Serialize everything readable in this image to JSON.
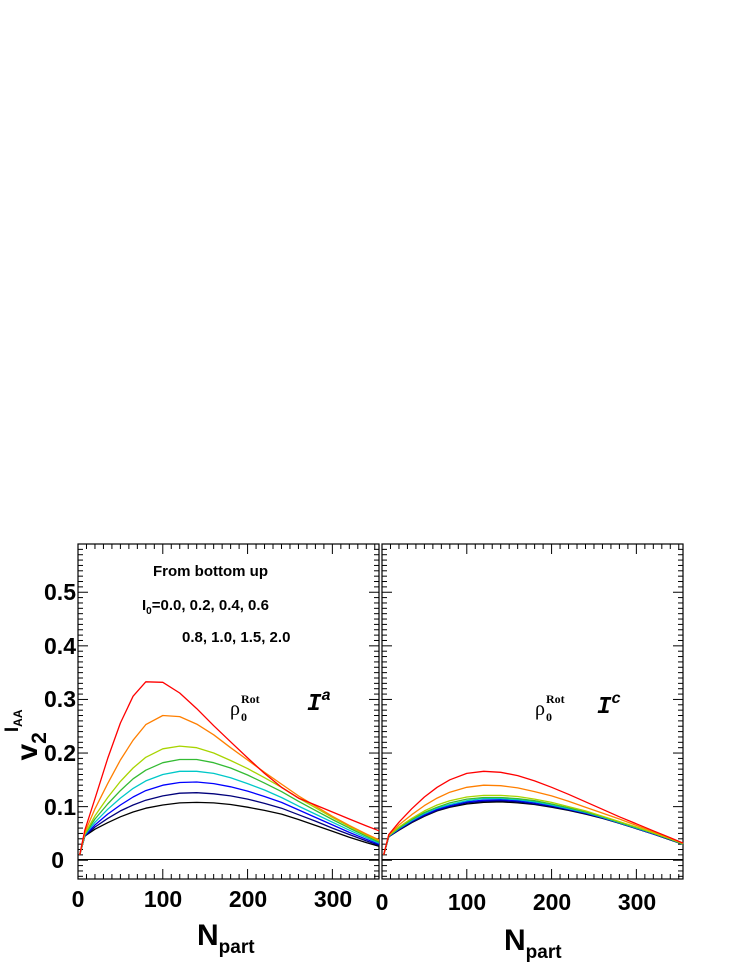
{
  "chart_data": [
    {
      "type": "line",
      "panel": "left",
      "panel_label": {
        "main": "I",
        "sup": "a"
      },
      "rho_label": {
        "main": "ρ",
        "sub": "0",
        "sup": "Rot"
      },
      "xlabel": {
        "main": "N",
        "sub": "part"
      },
      "ylabel": {
        "main": "v",
        "sub": "2",
        "sup_main": "I",
        "sup_sub": "AA"
      },
      "xlim": [
        0,
        355
      ],
      "ylim": [
        -0.035,
        0.59
      ],
      "xticks": [
        "0",
        "100",
        "200",
        "300"
      ],
      "yticks": [
        "0",
        "0.1",
        "0.2",
        "0.3",
        "0.4",
        "0.5"
      ],
      "annotations": {
        "line1": "From bottom up",
        "line2_main": "I",
        "line2_sub": "0",
        "line2_rest": "=0.0, 0.2, 0.4, 0.6",
        "line3": "0.8, 1.0, 1.5, 2.0"
      },
      "x": [
        2,
        8,
        20,
        35,
        50,
        65,
        80,
        100,
        120,
        140,
        160,
        180,
        200,
        220,
        240,
        260,
        280,
        300,
        320,
        340,
        355
      ],
      "series": [
        {
          "I0": "0.0",
          "color": "#000000",
          "values": [
            0.01,
            0.045,
            0.058,
            0.07,
            0.081,
            0.09,
            0.097,
            0.103,
            0.107,
            0.108,
            0.107,
            0.104,
            0.099,
            0.093,
            0.086,
            0.076,
            0.065,
            0.054,
            0.043,
            0.033,
            0.026
          ]
        },
        {
          "I0": "0.2",
          "color": "#00007a",
          "values": [
            0.01,
            0.045,
            0.062,
            0.078,
            0.092,
            0.103,
            0.112,
            0.12,
            0.125,
            0.126,
            0.124,
            0.12,
            0.114,
            0.106,
            0.097,
            0.085,
            0.073,
            0.06,
            0.048,
            0.036,
            0.028
          ]
        },
        {
          "I0": "0.4",
          "color": "#0000ff",
          "values": [
            0.01,
            0.046,
            0.066,
            0.086,
            0.103,
            0.118,
            0.13,
            0.14,
            0.145,
            0.146,
            0.143,
            0.137,
            0.129,
            0.119,
            0.108,
            0.094,
            0.08,
            0.066,
            0.052,
            0.039,
            0.03
          ]
        },
        {
          "I0": "0.6",
          "color": "#00c8c8",
          "values": [
            0.01,
            0.047,
            0.071,
            0.095,
            0.116,
            0.134,
            0.148,
            0.16,
            0.166,
            0.166,
            0.162,
            0.154,
            0.143,
            0.131,
            0.117,
            0.101,
            0.086,
            0.071,
            0.056,
            0.042,
            0.032
          ]
        },
        {
          "I0": "0.8",
          "color": "#33bb33",
          "values": [
            0.01,
            0.048,
            0.077,
            0.105,
            0.13,
            0.152,
            0.168,
            0.182,
            0.188,
            0.188,
            0.182,
            0.172,
            0.159,
            0.144,
            0.128,
            0.11,
            0.093,
            0.076,
            0.06,
            0.045,
            0.034
          ]
        },
        {
          "I0": "1.0",
          "color": "#a8d400",
          "values": [
            0.01,
            0.049,
            0.083,
            0.117,
            0.147,
            0.172,
            0.192,
            0.208,
            0.213,
            0.21,
            0.2,
            0.186,
            0.171,
            0.154,
            0.136,
            0.116,
            0.098,
            0.08,
            0.063,
            0.047,
            0.036
          ]
        },
        {
          "I0": "1.5",
          "color": "#ff7f00",
          "values": [
            0.01,
            0.052,
            0.096,
            0.143,
            0.187,
            0.224,
            0.253,
            0.27,
            0.268,
            0.254,
            0.234,
            0.21,
            0.187,
            0.164,
            0.142,
            0.12,
            0.101,
            0.082,
            0.065,
            0.049,
            0.038
          ]
        },
        {
          "I0": "2.0",
          "color": "#ff0000",
          "values": [
            0.01,
            0.056,
            0.115,
            0.19,
            0.256,
            0.306,
            0.333,
            0.332,
            0.312,
            0.283,
            0.251,
            0.221,
            0.191,
            0.162,
            0.136,
            0.116,
            0.103,
            0.09,
            0.077,
            0.064,
            0.055
          ]
        }
      ]
    },
    {
      "type": "line",
      "panel": "right",
      "panel_label": {
        "main": "I",
        "sup": "c"
      },
      "rho_label": {
        "main": "ρ",
        "sub": "0",
        "sup": "Rot"
      },
      "xlabel": {
        "main": "N",
        "sub": "part"
      },
      "xlim": [
        0,
        355
      ],
      "ylim": [
        -0.035,
        0.59
      ],
      "xticks": [
        "0",
        "100",
        "200",
        "300"
      ],
      "x": [
        2,
        8,
        20,
        35,
        50,
        65,
        80,
        100,
        120,
        140,
        160,
        180,
        200,
        220,
        240,
        260,
        280,
        300,
        320,
        340,
        355
      ],
      "series": [
        {
          "I0": "0.0",
          "color": "#000000",
          "values": [
            0.01,
            0.044,
            0.056,
            0.07,
            0.082,
            0.092,
            0.099,
            0.105,
            0.108,
            0.109,
            0.107,
            0.104,
            0.099,
            0.093,
            0.086,
            0.078,
            0.069,
            0.059,
            0.049,
            0.038,
            0.03
          ]
        },
        {
          "I0": "0.2",
          "color": "#00007a",
          "values": [
            0.01,
            0.044,
            0.057,
            0.071,
            0.083,
            0.093,
            0.1,
            0.107,
            0.11,
            0.111,
            0.109,
            0.105,
            0.1,
            0.094,
            0.087,
            0.079,
            0.069,
            0.059,
            0.049,
            0.038,
            0.03
          ]
        },
        {
          "I0": "0.4",
          "color": "#0000ff",
          "values": [
            0.01,
            0.045,
            0.058,
            0.073,
            0.085,
            0.095,
            0.102,
            0.109,
            0.112,
            0.113,
            0.111,
            0.107,
            0.102,
            0.095,
            0.088,
            0.079,
            0.07,
            0.06,
            0.049,
            0.039,
            0.03
          ]
        },
        {
          "I0": "0.6",
          "color": "#00c8c8",
          "values": [
            0.01,
            0.045,
            0.059,
            0.074,
            0.087,
            0.097,
            0.104,
            0.111,
            0.115,
            0.115,
            0.113,
            0.109,
            0.103,
            0.096,
            0.089,
            0.08,
            0.07,
            0.06,
            0.05,
            0.039,
            0.03
          ]
        },
        {
          "I0": "0.8",
          "color": "#33bb33",
          "values": [
            0.01,
            0.046,
            0.06,
            0.076,
            0.089,
            0.099,
            0.107,
            0.114,
            0.117,
            0.117,
            0.115,
            0.111,
            0.105,
            0.098,
            0.09,
            0.081,
            0.071,
            0.061,
            0.05,
            0.039,
            0.03
          ]
        },
        {
          "I0": "1.0",
          "color": "#a8d400",
          "values": [
            0.01,
            0.046,
            0.062,
            0.078,
            0.092,
            0.103,
            0.111,
            0.118,
            0.121,
            0.121,
            0.119,
            0.114,
            0.108,
            0.1,
            0.092,
            0.082,
            0.072,
            0.062,
            0.051,
            0.04,
            0.031
          ]
        },
        {
          "I0": "1.5",
          "color": "#ff7f00",
          "values": [
            0.01,
            0.047,
            0.066,
            0.085,
            0.102,
            0.116,
            0.127,
            0.136,
            0.14,
            0.139,
            0.135,
            0.128,
            0.12,
            0.11,
            0.099,
            0.088,
            0.077,
            0.065,
            0.053,
            0.041,
            0.032
          ]
        },
        {
          "I0": "2.0",
          "color": "#ff0000",
          "values": [
            0.01,
            0.048,
            0.071,
            0.096,
            0.118,
            0.136,
            0.15,
            0.162,
            0.166,
            0.164,
            0.158,
            0.148,
            0.136,
            0.123,
            0.109,
            0.095,
            0.081,
            0.068,
            0.055,
            0.042,
            0.032
          ]
        }
      ]
    }
  ]
}
